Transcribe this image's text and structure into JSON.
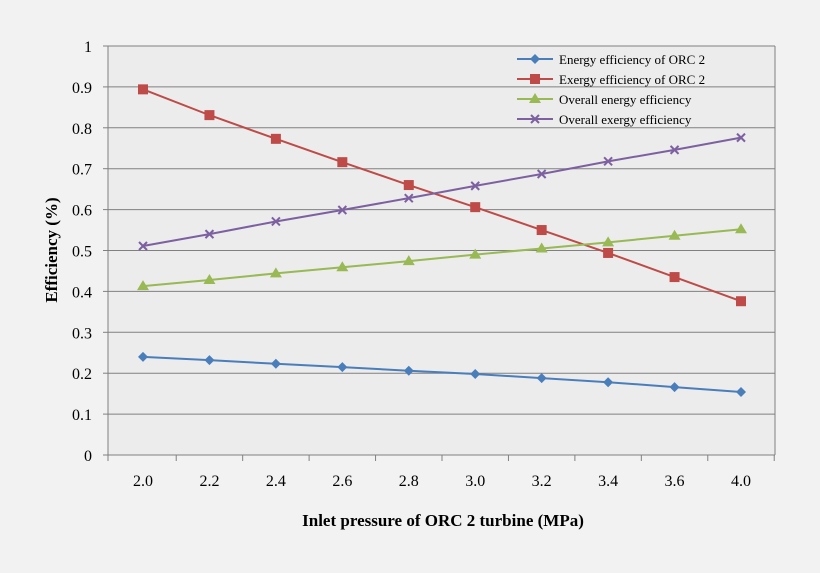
{
  "chart_data": {
    "type": "line",
    "title": "",
    "xlabel": "Inlet pressure of ORC 2 turbine  (MPa)",
    "ylabel": "Efficiency (%)",
    "x": [
      "2.0",
      "2.2",
      "2.4",
      "2.6",
      "2.8",
      "3.0",
      "3.2",
      "3.4",
      "3.6",
      "4.0"
    ],
    "ylim": [
      0,
      1
    ],
    "yticks": [
      "0",
      "0.1",
      "0.2",
      "0.3",
      "0.4",
      "0.5",
      "0.6",
      "0.7",
      "0.8",
      "0.9",
      "1"
    ],
    "grid": "horizontal",
    "legend": "top-right",
    "series": [
      {
        "name": "Energy efficiency of ORC 2",
        "color": "#4a7ebb",
        "marker": "diamond",
        "values": [
          0.24,
          0.232,
          0.223,
          0.215,
          0.206,
          0.198,
          0.188,
          0.178,
          0.166,
          0.154
        ]
      },
      {
        "name": "Exergy efficiency of ORC 2",
        "color": "#be4b48",
        "marker": "square",
        "values": [
          0.894,
          0.831,
          0.773,
          0.716,
          0.66,
          0.606,
          0.55,
          0.494,
          0.435,
          0.376
        ]
      },
      {
        "name": "Overall energy efficiency",
        "color": "#98b954",
        "marker": "triangle",
        "values": [
          0.413,
          0.428,
          0.444,
          0.459,
          0.474,
          0.49,
          0.505,
          0.52,
          0.536,
          0.552
        ]
      },
      {
        "name": "Overall exergy efficiency",
        "color": "#7d60a0",
        "marker": "x",
        "values": [
          0.511,
          0.54,
          0.571,
          0.599,
          0.628,
          0.658,
          0.687,
          0.718,
          0.746,
          0.776
        ]
      }
    ]
  }
}
